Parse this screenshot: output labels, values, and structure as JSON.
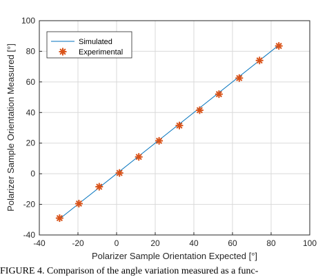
{
  "chart_data": {
    "type": "scatter",
    "xlabel": "Polarizer Sample Orientation Expected [°]",
    "ylabel": "Polarizer Sample Orientation Measured [°]",
    "xlim": [
      -40,
      100
    ],
    "ylim": [
      -40,
      100
    ],
    "xticks": [
      -40,
      -20,
      0,
      20,
      40,
      60,
      80,
      100
    ],
    "yticks": [
      -40,
      -20,
      0,
      20,
      40,
      60,
      80,
      100
    ],
    "grid": true,
    "legend_position": "top-left",
    "series": [
      {
        "name": "Simulated",
        "kind": "line",
        "color": "#0072BD",
        "x": [
          -30,
          84
        ],
        "y": [
          -30,
          84
        ]
      },
      {
        "name": "Experimental",
        "kind": "marker",
        "marker": "asterisk",
        "color": "#D95319",
        "x": [
          -29.5,
          -19.5,
          -9,
          1.5,
          11.5,
          22,
          32.5,
          43,
          53,
          63.5,
          74,
          84
        ],
        "y": [
          -29,
          -19.5,
          -8.5,
          0.5,
          11,
          21.5,
          31.5,
          41.5,
          52,
          62.5,
          74,
          83.5
        ]
      }
    ]
  },
  "caption": "FIGURE 4. Comparison of the angle variation measured as a func-"
}
